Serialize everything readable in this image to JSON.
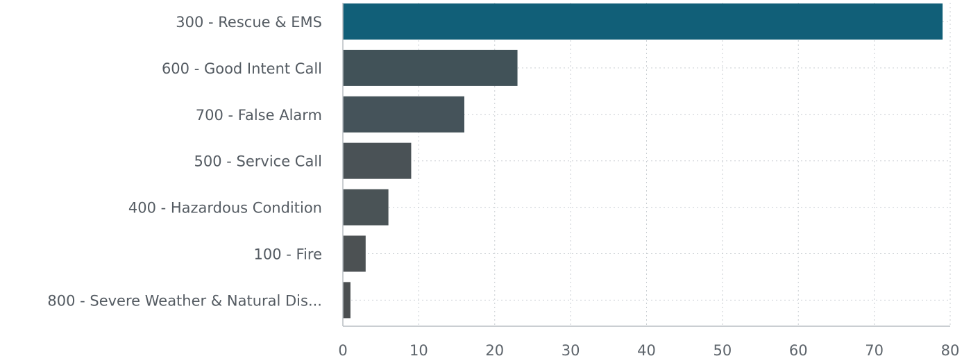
{
  "chart_data": {
    "type": "bar",
    "orientation": "horizontal",
    "categories": [
      "300 - Rescue & EMS",
      "600 - Good Intent Call",
      "700 - False Alarm",
      "500 - Service Call",
      "400 - Hazardous Condition",
      "100 - Fire",
      "800 - Severe Weather & Natural Dis..."
    ],
    "values": [
      79,
      23,
      16,
      9,
      6,
      3,
      1
    ],
    "bar_colors": [
      "#115f78",
      "#415258",
      "#45535a",
      "#4a5256",
      "#4a5356",
      "#4c5153",
      "#4b4f51"
    ],
    "xlim": [
      0,
      80
    ],
    "xticks": [
      "0",
      "10",
      "20",
      "30",
      "40",
      "50",
      "60",
      "70",
      "80"
    ],
    "title": "",
    "xlabel": "",
    "ylabel": "",
    "grid": true,
    "legend": "none"
  }
}
